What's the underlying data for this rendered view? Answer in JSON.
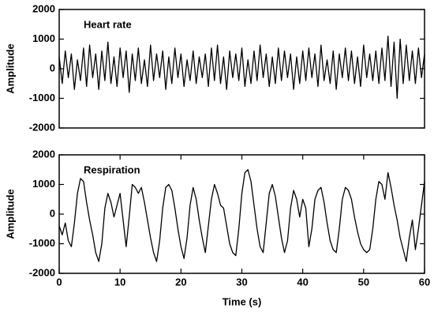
{
  "chart_data": [
    {
      "type": "line",
      "annotation": "Heart rate",
      "ylabel": "Amplitude",
      "color": "#000000",
      "xlim": [
        0,
        60
      ],
      "ylim": [
        -2000,
        2000
      ],
      "yticks": [
        2000,
        1000,
        0,
        -1000,
        -2000
      ],
      "x": [
        0,
        0.5,
        1,
        1.5,
        2,
        2.5,
        3,
        3.5,
        4,
        4.5,
        5,
        5.5,
        6,
        6.5,
        7,
        7.5,
        8,
        8.5,
        9,
        9.5,
        10,
        10.5,
        11,
        11.5,
        12,
        12.5,
        13,
        13.5,
        14,
        14.5,
        15,
        15.5,
        16,
        16.5,
        17,
        17.5,
        18,
        18.5,
        19,
        19.5,
        20,
        20.5,
        21,
        21.5,
        22,
        22.5,
        23,
        23.5,
        24,
        24.5,
        25,
        25.5,
        26,
        26.5,
        27,
        27.5,
        28,
        28.5,
        29,
        29.5,
        30,
        30.5,
        31,
        31.5,
        32,
        32.5,
        33,
        33.5,
        34,
        34.5,
        35,
        35.5,
        36,
        36.5,
        37,
        37.5,
        38,
        38.5,
        39,
        39.5,
        40,
        40.5,
        41,
        41.5,
        42,
        42.5,
        43,
        43.5,
        44,
        44.5,
        45,
        45.5,
        46,
        46.5,
        47,
        47.5,
        48,
        48.5,
        49,
        49.5,
        50,
        50.5,
        51,
        51.5,
        52,
        52.5,
        53,
        53.5,
        54,
        54.5,
        55,
        55.5,
        56,
        56.5,
        57,
        57.5,
        58,
        58.5,
        59,
        59.5,
        60
      ],
      "values": [
        400,
        -500,
        600,
        -300,
        500,
        -700,
        300,
        -400,
        700,
        -600,
        800,
        -300,
        500,
        -700,
        600,
        -400,
        900,
        -500,
        400,
        -600,
        700,
        -300,
        600,
        -800,
        500,
        -400,
        700,
        -500,
        300,
        -600,
        800,
        -400,
        500,
        -300,
        600,
        -700,
        400,
        -500,
        700,
        -300,
        500,
        -600,
        300,
        -400,
        600,
        -500,
        400,
        -300,
        500,
        -600,
        700,
        -400,
        800,
        -500,
        400,
        -700,
        600,
        -300,
        500,
        -400,
        700,
        -600,
        300,
        -500,
        600,
        -400,
        800,
        -300,
        500,
        -600,
        400,
        -500,
        700,
        -400,
        600,
        -300,
        500,
        -700,
        400,
        -500,
        600,
        -400,
        700,
        -300,
        500,
        -600,
        800,
        -400,
        300,
        -500,
        600,
        -700,
        500,
        -300,
        700,
        -400,
        600,
        -500,
        400,
        -600,
        800,
        -300,
        500,
        -400,
        600,
        -500,
        700,
        -400,
        1100,
        -600,
        900,
        -1000,
        1000,
        -500,
        800,
        -400,
        600,
        -500,
        700,
        -300,
        500
      ]
    },
    {
      "type": "line",
      "annotation": "Respiration",
      "ylabel": "Amplitude",
      "xlabel": "Time (s)",
      "color": "#000000",
      "xlim": [
        0,
        60
      ],
      "xticks": [
        0,
        10,
        20,
        30,
        40,
        50,
        60
      ],
      "ylim": [
        -2000,
        2000
      ],
      "yticks": [
        2000,
        1000,
        0,
        -1000,
        -2000
      ],
      "x": [
        0,
        0.5,
        1,
        1.5,
        2,
        2.5,
        3,
        3.5,
        4,
        4.5,
        5,
        5.5,
        6,
        6.5,
        7,
        7.5,
        8,
        8.5,
        9,
        9.5,
        10,
        10.5,
        11,
        11.5,
        12,
        12.5,
        13,
        13.5,
        14,
        14.5,
        15,
        15.5,
        16,
        16.5,
        17,
        17.5,
        18,
        18.5,
        19,
        19.5,
        20,
        20.5,
        21,
        21.5,
        22,
        22.5,
        23,
        23.5,
        24,
        24.5,
        25,
        25.5,
        26,
        26.5,
        27,
        27.5,
        28,
        28.5,
        29,
        29.5,
        30,
        30.5,
        31,
        31.5,
        32,
        32.5,
        33,
        33.5,
        34,
        34.5,
        35,
        35.5,
        36,
        36.5,
        37,
        37.5,
        38,
        38.5,
        39,
        39.5,
        40,
        40.5,
        41,
        41.5,
        42,
        42.5,
        43,
        43.5,
        44,
        44.5,
        45,
        45.5,
        46,
        46.5,
        47,
        47.5,
        48,
        48.5,
        49,
        49.5,
        50,
        50.5,
        51,
        51.5,
        52,
        52.5,
        53,
        53.5,
        54,
        54.5,
        55,
        55.5,
        56,
        56.5,
        57,
        57.5,
        58,
        58.5,
        59,
        59.5,
        60
      ],
      "values": [
        -400,
        -700,
        -300,
        -900,
        -1100,
        -300,
        700,
        1200,
        1100,
        400,
        -200,
        -700,
        -1300,
        -1600,
        -1000,
        200,
        700,
        400,
        -100,
        300,
        700,
        -200,
        -1100,
        -100,
        1000,
        900,
        700,
        900,
        400,
        -200,
        -800,
        -1300,
        -1600,
        -900,
        200,
        900,
        1000,
        800,
        200,
        -500,
        -1100,
        -1500,
        -800,
        300,
        900,
        500,
        -200,
        -800,
        -1300,
        -400,
        500,
        1000,
        700,
        300,
        200,
        -400,
        -1000,
        -1300,
        -1400,
        -500,
        700,
        1400,
        1500,
        1100,
        300,
        -500,
        -1100,
        -1300,
        -300,
        700,
        1000,
        600,
        -100,
        -800,
        -1300,
        -900,
        200,
        800,
        500,
        -100,
        500,
        200,
        -1100,
        -500,
        500,
        800,
        900,
        400,
        -300,
        -900,
        -1200,
        -1300,
        -500,
        500,
        900,
        800,
        500,
        -100,
        -600,
        -1000,
        -1200,
        -1300,
        -1200,
        -500,
        500,
        1100,
        1000,
        500,
        1400,
        900,
        300,
        -200,
        -800,
        -1200,
        -1600,
        -800,
        -200,
        -1200,
        -500,
        300,
        1100
      ]
    }
  ]
}
